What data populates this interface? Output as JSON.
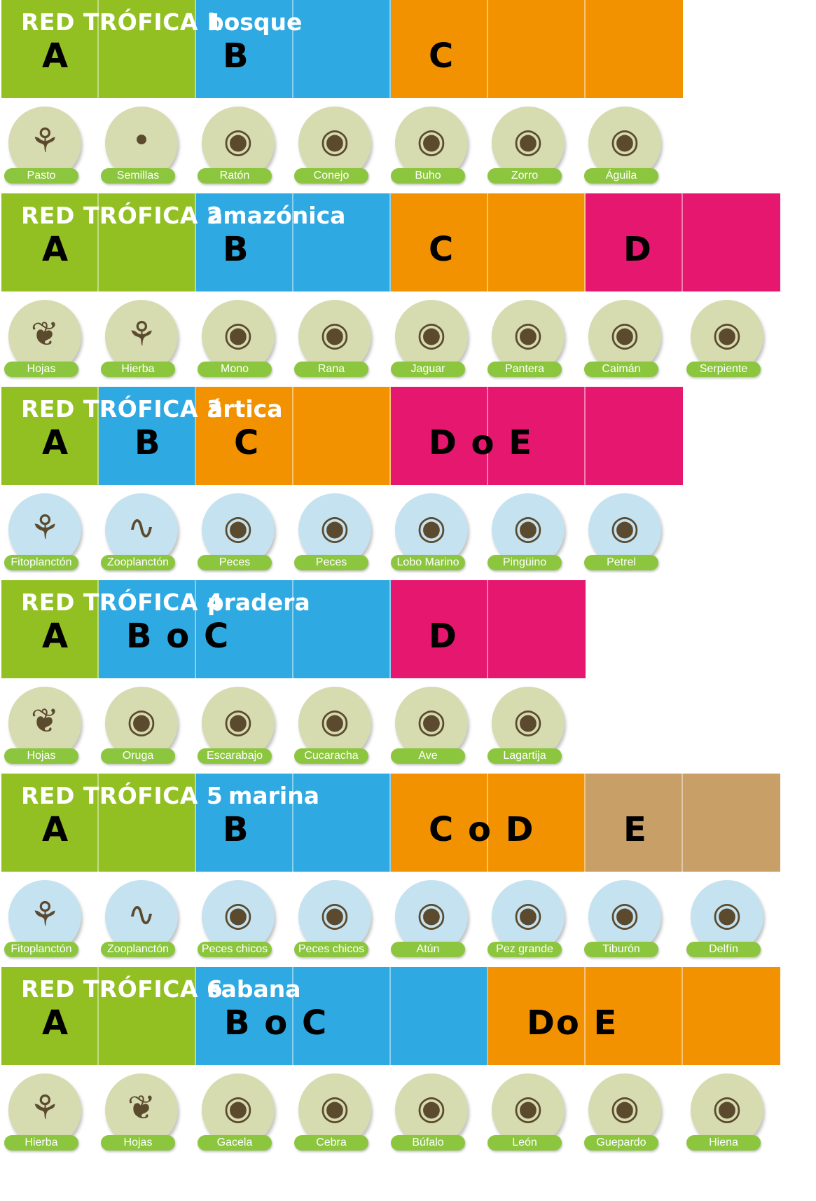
{
  "colors": {
    "green": "#92c022",
    "blue": "#2ea9e1",
    "orange": "#f39200",
    "magenta": "#e5176f",
    "tan": "#c89f67",
    "label_green": "#8cc63e",
    "land_circle": "#d6dbb0",
    "water_circle": "#c4e2ef"
  },
  "sections": [
    {
      "title": "RED TRÓFICA 1",
      "habitat": "bosque",
      "cells": [
        "green",
        "green",
        "blue",
        "blue",
        "orange",
        "orange",
        "orange"
      ],
      "letters": [
        "A",
        "B",
        "C"
      ],
      "animals": [
        {
          "label": "Pasto",
          "icon": "grass-icon",
          "glyph": "⚘",
          "bg": "land"
        },
        {
          "label": "Semillas",
          "icon": "seeds-icon",
          "glyph": "•",
          "bg": "land"
        },
        {
          "label": "Ratón",
          "icon": "mouse-icon",
          "glyph": "◉",
          "bg": "land"
        },
        {
          "label": "Conejo",
          "icon": "rabbit-icon",
          "glyph": "◉",
          "bg": "land"
        },
        {
          "label": "Buho",
          "icon": "owl-icon",
          "glyph": "◉",
          "bg": "land"
        },
        {
          "label": "Zorro",
          "icon": "fox-icon",
          "glyph": "◉",
          "bg": "land"
        },
        {
          "label": "Águila",
          "icon": "eagle-icon",
          "glyph": "◉",
          "bg": "land"
        }
      ]
    },
    {
      "title": "RED TRÓFICA 2",
      "habitat": "amazónica",
      "cells": [
        "green",
        "green",
        "blue",
        "blue",
        "orange",
        "orange",
        "magenta",
        "magenta"
      ],
      "letters": [
        "A",
        "B",
        "C",
        "D"
      ],
      "animals": [
        {
          "label": "Hojas",
          "icon": "leaves-icon",
          "glyph": "❦",
          "bg": "land"
        },
        {
          "label": "Hierba",
          "icon": "herb-icon",
          "glyph": "⚘",
          "bg": "land"
        },
        {
          "label": "Mono",
          "icon": "monkey-icon",
          "glyph": "◉",
          "bg": "land"
        },
        {
          "label": "Rana",
          "icon": "frog-icon",
          "glyph": "◉",
          "bg": "land"
        },
        {
          "label": "Jaguar",
          "icon": "jaguar-icon",
          "glyph": "◉",
          "bg": "land"
        },
        {
          "label": "Pantera",
          "icon": "panther-icon",
          "glyph": "◉",
          "bg": "land"
        },
        {
          "label": "Caimán",
          "icon": "caiman-icon",
          "glyph": "◉",
          "bg": "land"
        },
        {
          "label": "Serpiente",
          "icon": "snake-icon",
          "glyph": "◉",
          "bg": "land"
        }
      ]
    },
    {
      "title": "RED TRÓFICA 3",
      "habitat": "ártica",
      "cells": [
        "green",
        "blue",
        "orange",
        "orange",
        "magenta",
        "magenta",
        "magenta"
      ],
      "letters": [
        "A",
        "B",
        "C",
        "D o E"
      ],
      "animals": [
        {
          "label": "Fitoplanctón",
          "icon": "phytoplankton-icon",
          "glyph": "⚘",
          "bg": "water"
        },
        {
          "label": "Zooplanctón",
          "icon": "zooplankton-icon",
          "glyph": "∿",
          "bg": "water"
        },
        {
          "label": "Peces",
          "icon": "fish-icon",
          "glyph": "◉",
          "bg": "water"
        },
        {
          "label": "Peces",
          "icon": "fish-icon",
          "glyph": "◉",
          "bg": "water"
        },
        {
          "label": "Lobo Marino",
          "icon": "sea-lion-icon",
          "glyph": "◉",
          "bg": "water"
        },
        {
          "label": "Pingüino",
          "icon": "penguin-icon",
          "glyph": "◉",
          "bg": "water"
        },
        {
          "label": "Petrel",
          "icon": "petrel-icon",
          "glyph": "◉",
          "bg": "water"
        }
      ]
    },
    {
      "title": "RED TRÓFICA 4",
      "habitat": "pradera",
      "cells": [
        "green",
        "blue",
        "blue",
        "blue",
        "magenta",
        "magenta"
      ],
      "letters": [
        "A",
        "B o C",
        "D"
      ],
      "animals": [
        {
          "label": "Hojas",
          "icon": "leaves-icon",
          "glyph": "❦",
          "bg": "land"
        },
        {
          "label": "Oruga",
          "icon": "caterpillar-icon",
          "glyph": "◉",
          "bg": "land"
        },
        {
          "label": "Escarabajo",
          "icon": "beetle-icon",
          "glyph": "◉",
          "bg": "land"
        },
        {
          "label": "Cucaracha",
          "icon": "cockroach-icon",
          "glyph": "◉",
          "bg": "land"
        },
        {
          "label": "Ave",
          "icon": "bird-icon",
          "glyph": "◉",
          "bg": "land"
        },
        {
          "label": "Lagartija",
          "icon": "lizard-icon",
          "glyph": "◉",
          "bg": "land"
        }
      ]
    },
    {
      "title": "RED TRÓFICA 5",
      "habitat": "marina",
      "cells": [
        "green",
        "green",
        "blue",
        "blue",
        "orange",
        "orange",
        "tan",
        "tan"
      ],
      "letters": [
        "A",
        "B",
        "C o D",
        "E"
      ],
      "animals": [
        {
          "label": "Fitoplanctón",
          "icon": "phytoplankton-icon",
          "glyph": "⚘",
          "bg": "water"
        },
        {
          "label": "Zooplanctón",
          "icon": "zooplankton-icon",
          "glyph": "∿",
          "bg": "water"
        },
        {
          "label": "Peces chicos",
          "icon": "small-fish-icon",
          "glyph": "◉",
          "bg": "water"
        },
        {
          "label": "Peces chicos",
          "icon": "small-fish-icon",
          "glyph": "◉",
          "bg": "water"
        },
        {
          "label": "Atún",
          "icon": "tuna-icon",
          "glyph": "◉",
          "bg": "water"
        },
        {
          "label": "Pez grande",
          "icon": "big-fish-icon",
          "glyph": "◉",
          "bg": "water"
        },
        {
          "label": "Tiburón",
          "icon": "shark-icon",
          "glyph": "◉",
          "bg": "water"
        },
        {
          "label": "Delfín",
          "icon": "dolphin-icon",
          "glyph": "◉",
          "bg": "water"
        }
      ]
    },
    {
      "title": "RED TRÓFICA 6",
      "habitat": "sabana",
      "cells": [
        "green",
        "green",
        "blue",
        "blue",
        "blue",
        "orange",
        "orange",
        "orange"
      ],
      "letters": [
        "A",
        "B o C",
        "Do E"
      ],
      "animals": [
        {
          "label": "Hierba",
          "icon": "herb-icon",
          "glyph": "⚘",
          "bg": "land"
        },
        {
          "label": "Hojas",
          "icon": "leaves-icon",
          "glyph": "❦",
          "bg": "land"
        },
        {
          "label": "Gacela",
          "icon": "gazelle-icon",
          "glyph": "◉",
          "bg": "land"
        },
        {
          "label": "Cebra",
          "icon": "zebra-icon",
          "glyph": "◉",
          "bg": "land"
        },
        {
          "label": "Búfalo",
          "icon": "buffalo-icon",
          "glyph": "◉",
          "bg": "land"
        },
        {
          "label": "León",
          "icon": "lion-icon",
          "glyph": "◉",
          "bg": "land"
        },
        {
          "label": "Guepardo",
          "icon": "cheetah-icon",
          "glyph": "◉",
          "bg": "land"
        },
        {
          "label": "Hiena",
          "icon": "hyena-icon",
          "glyph": "◉",
          "bg": "land"
        }
      ]
    }
  ]
}
